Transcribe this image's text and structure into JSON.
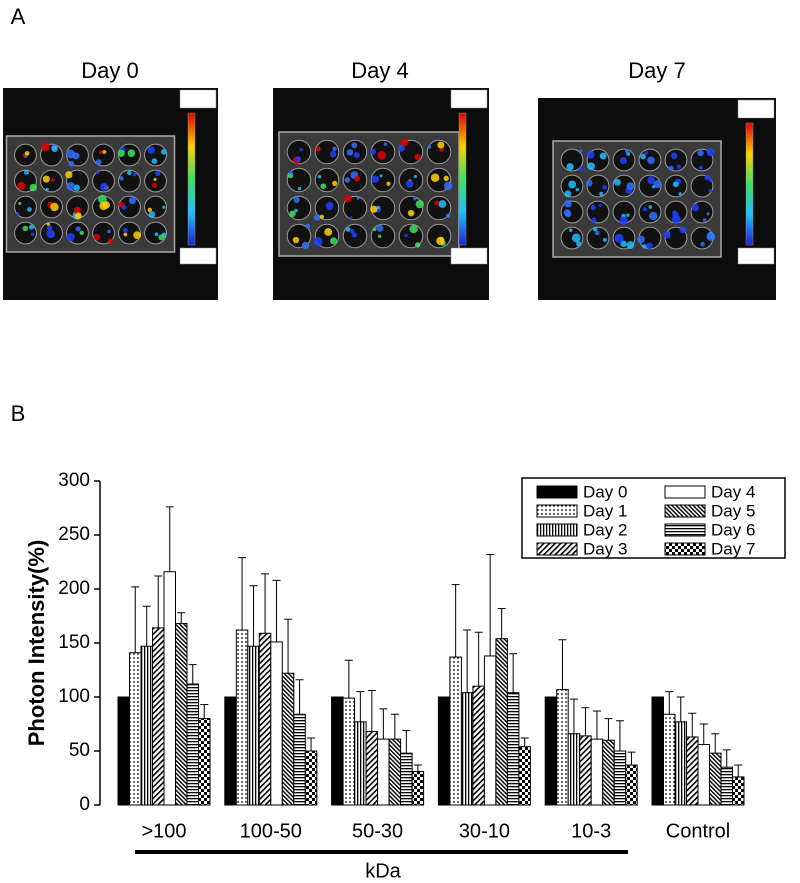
{
  "panel_a": {
    "label": "A",
    "images": [
      {
        "title": "Day 0"
      },
      {
        "title": "Day 4"
      },
      {
        "title": "Day 7"
      }
    ]
  },
  "chart_data": {
    "type": "bar",
    "panel_label": "B",
    "y_label": "Photon Intensity(%)",
    "x_label": "kDa",
    "categories": [
      ">100",
      "100-50",
      "50-30",
      "30-10",
      "10-3",
      "Control"
    ],
    "ylim": [
      0,
      300
    ],
    "yticks": [
      0,
      50,
      100,
      150,
      200,
      250,
      300
    ],
    "series": [
      {
        "name": "Day 0",
        "color": "#000000",
        "pattern": "solid",
        "values": [
          100,
          100,
          100,
          100,
          100,
          100
        ],
        "errors": [
          0,
          0,
          0,
          0,
          0,
          0
        ]
      },
      {
        "name": "Day 1",
        "color": "#000000",
        "pattern": "dots",
        "values": [
          141,
          162,
          99,
          137,
          107,
          84
        ],
        "errors": [
          61,
          67,
          35,
          67,
          46,
          21
        ]
      },
      {
        "name": "Day 2",
        "color": "#000000",
        "pattern": "vertical",
        "values": [
          147,
          147,
          77,
          104,
          66,
          77
        ],
        "errors": [
          37,
          56,
          28,
          58,
          32,
          23
        ]
      },
      {
        "name": "Day 3",
        "color": "#000000",
        "pattern": "diagonal",
        "values": [
          164,
          159,
          68,
          110,
          64,
          63
        ],
        "errors": [
          48,
          55,
          38,
          50,
          26,
          22
        ]
      },
      {
        "name": "Day 4",
        "color": "#000000",
        "pattern": "none",
        "values": [
          216,
          151,
          61,
          138,
          61,
          56
        ],
        "errors": [
          60,
          57,
          28,
          94,
          26,
          19
        ]
      },
      {
        "name": "Day 5",
        "color": "#000000",
        "pattern": "back-diagonal",
        "values": [
          168,
          122,
          61,
          154,
          60,
          48
        ],
        "errors": [
          10,
          50,
          23,
          28,
          20,
          18
        ]
      },
      {
        "name": "Day 6",
        "color": "#000000",
        "pattern": "horizontal",
        "values": [
          112,
          84,
          48,
          104,
          50,
          35
        ],
        "errors": [
          18,
          32,
          21,
          36,
          28,
          16
        ]
      },
      {
        "name": "Day 7",
        "color": "#000000",
        "pattern": "checker",
        "values": [
          80,
          50,
          31,
          54,
          37,
          26
        ],
        "errors": [
          13,
          12,
          6,
          8,
          12,
          11
        ]
      }
    ]
  }
}
